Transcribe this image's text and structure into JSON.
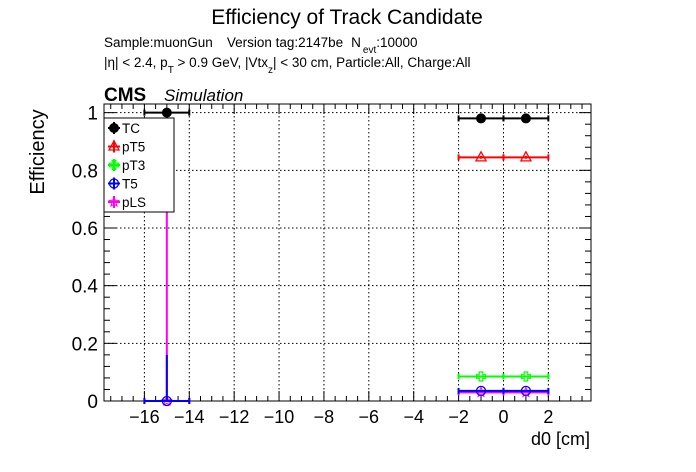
{
  "chart_data": {
    "type": "scatter",
    "title": "Efficiency of Track Candidate",
    "info_line1": {
      "sample": "Sample:muonGun",
      "version": "Version tag:2147be",
      "nevt_prefix": "N",
      "nevt_sub": "evt",
      "nevt_suffix": ":10000"
    },
    "info_line2": {
      "eta": "|η| < 2.4, p",
      "pt_sub": "T",
      "pt_cut": " > 0.9 GeV, |Vtx",
      "vtx_sub": "z",
      "rest": "| < 30 cm, Particle:All, Charge:All"
    },
    "cms_label": "CMS",
    "simulation_label": "Simulation",
    "xlabel": "d0 [cm]",
    "ylabel": "Efficiency",
    "xlim": [
      -17.8,
      3.9
    ],
    "ylim": [
      0,
      1.03
    ],
    "x_ticks": [
      -16,
      -14,
      -12,
      -10,
      -8,
      -6,
      -4,
      -2,
      0,
      2
    ],
    "x_tick_labels": [
      "−16",
      "−14",
      "−12",
      "−10",
      "−8",
      "−6",
      "−4",
      "−2",
      "0",
      "2"
    ],
    "y_ticks": [
      0,
      0.2,
      0.4,
      0.6,
      0.8,
      1
    ],
    "y_tick_labels": [
      "0",
      "0.2",
      "0.4",
      "0.6",
      "0.8",
      "1"
    ],
    "grid": true,
    "legend_position": "top-left",
    "series": [
      {
        "name": "TC",
        "color": "#000000",
        "marker": "filled-circle",
        "points": [
          {
            "x": -15,
            "xerr": 1,
            "y": 1.0,
            "yerr": 0
          },
          {
            "x": -1,
            "xerr": 1,
            "y": 0.98,
            "yerr": 0.005
          },
          {
            "x": 1,
            "xerr": 1,
            "y": 0.98,
            "yerr": 0.005
          }
        ]
      },
      {
        "name": "pT5",
        "color": "#ff0000",
        "marker": "open-triangle",
        "points": [
          {
            "x": -1,
            "xerr": 1,
            "y": 0.845,
            "yerr": 0.005
          },
          {
            "x": 1,
            "xerr": 1,
            "y": 0.845,
            "yerr": 0.005
          }
        ]
      },
      {
        "name": "pT3",
        "color": "#00ff00",
        "marker": "open-cross",
        "points": [
          {
            "x": -1,
            "xerr": 1,
            "y": 0.085,
            "yerr": 0.004
          },
          {
            "x": 1,
            "xerr": 1,
            "y": 0.085,
            "yerr": 0.004
          }
        ]
      },
      {
        "name": "T5",
        "color": "#0000ff",
        "marker": "open-circle",
        "points": [
          {
            "x": -15,
            "xerr": 1,
            "y": 0.0,
            "yerr": 0.16
          },
          {
            "x": -1,
            "xerr": 1,
            "y": 0.035,
            "yerr": 0.003
          },
          {
            "x": 1,
            "xerr": 1,
            "y": 0.035,
            "yerr": 0.003
          }
        ]
      },
      {
        "name": "pLS",
        "color": "#ff00ff",
        "marker": "open-star",
        "points": [
          {
            "x": -15,
            "xerr": 1,
            "y": 0.0,
            "yerr": 1.0
          },
          {
            "x": -1,
            "xerr": 1,
            "y": 0.03,
            "yerr": 0.003
          },
          {
            "x": 1,
            "xerr": 1,
            "y": 0.03,
            "yerr": 0.003
          }
        ]
      }
    ]
  }
}
